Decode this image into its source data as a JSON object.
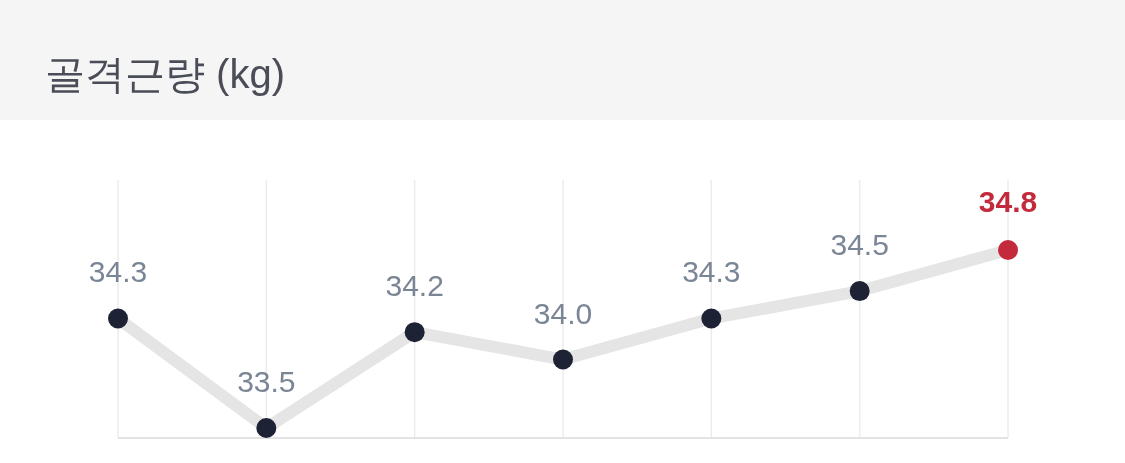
{
  "chart_data": {
    "type": "line",
    "title": "골격근량 (kg)",
    "categories": [
      null,
      null,
      null,
      null,
      null,
      null,
      null
    ],
    "series": [
      {
        "color": "#e5e5e5",
        "values": [
          34.3,
          33.5,
          34.2,
          34.0,
          34.3,
          34.5,
          34.8
        ],
        "value_labels": [
          "34.3",
          "33.5",
          "34.2",
          "34.0",
          "34.3",
          "34.5",
          "34.8"
        ],
        "colors": [
          "#1e2235",
          "#1e2235",
          "#1e2235",
          "#1e2235",
          "#1e2235",
          "#1e2235",
          "#c32b3c"
        ]
      }
    ],
    "grid": "x",
    "marker": "circle",
    "line_style": "solid"
  }
}
